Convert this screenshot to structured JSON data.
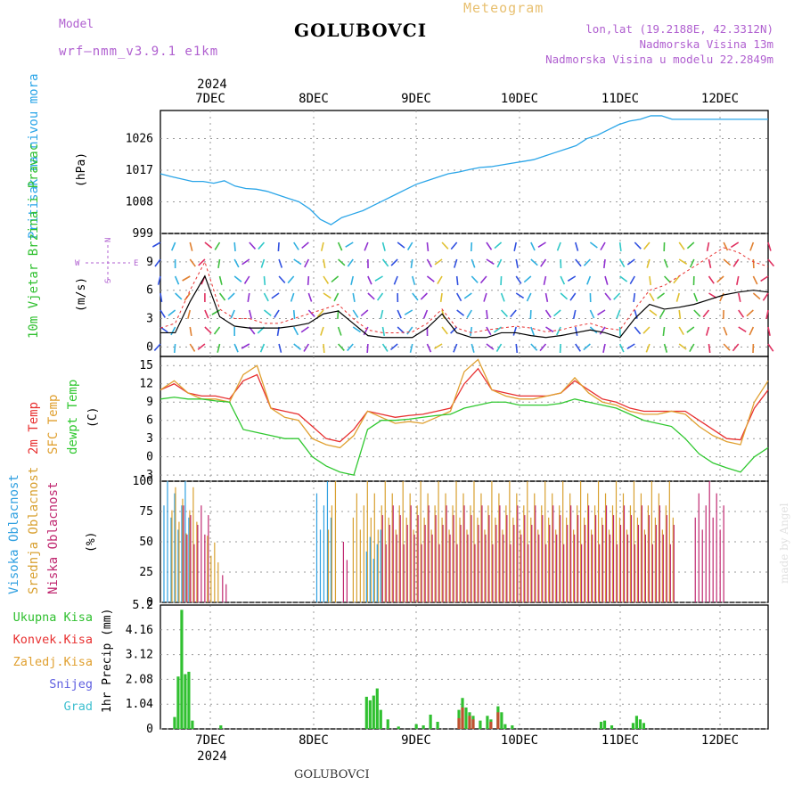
{
  "header": {
    "title": "GOLUBOVCI",
    "meteogram": "Meteogram",
    "model_label": "Model",
    "model_name": "wrf—nmm_v3.9.1  e1km",
    "lonlat": "lon,lat (19.2188E, 42.3312N)",
    "nadmorska": "Nadmorska Visina 13m",
    "nadmorska_model": "Nadmorska Visina u modelu 22.2849m",
    "bottom_label": "GOLUBOVCI",
    "credit": "made by Angel"
  },
  "colors": {
    "pressure": "#2aa5e8",
    "temp2m": "#e83030",
    "sfc": "#e0a030",
    "dewpt": "#30c830",
    "high_cloud": "#30a0e0",
    "mid_cloud": "#d8a030",
    "low_cloud": "#c02870",
    "total_precip": "#30c030",
    "conv_precip": "#c05030",
    "grad": "#40c0d0",
    "snow": "#6060e0",
    "wind_speed": "#000000",
    "gust": "#e83030"
  },
  "chart_data": [
    {
      "id": "pressure",
      "type": "line",
      "ylabel_left": "Pritisak na nivou mora",
      "units": "(hPa)",
      "ylim": [
        999,
        1034
      ],
      "yticks": [
        "1026",
        "1017",
        "1008",
        "999"
      ],
      "x_days": [
        "7DEC",
        "8DEC",
        "9DEC",
        "10DEC",
        "11DEC",
        "12DEC"
      ],
      "year": "2024",
      "x": [
        0,
        3,
        6,
        9,
        12,
        15,
        18,
        21,
        24,
        27,
        30,
        33,
        36,
        39,
        42,
        45,
        48,
        51,
        54,
        57,
        60,
        63,
        66,
        69,
        72,
        75,
        78,
        81,
        84,
        87,
        90,
        93,
        96,
        99,
        102,
        105,
        108,
        111,
        114,
        117,
        120,
        123,
        126,
        129,
        132,
        135,
        138,
        141,
        144,
        147,
        150,
        153,
        156,
        159,
        162,
        165,
        168,
        171
      ],
      "values": [
        1016,
        1015.2,
        1014.5,
        1013.8,
        1013.8,
        1013.3,
        1014,
        1012.5,
        1011.8,
        1011.6,
        1011,
        1010,
        1009,
        1008,
        1006,
        1003,
        1001.5,
        1003.5,
        1004.5,
        1005.5,
        1007,
        1008.5,
        1010,
        1011.5,
        1013,
        1014,
        1015,
        1016,
        1016.5,
        1017.2,
        1017.8,
        1018,
        1018.5,
        1019,
        1019.5,
        1020,
        1021,
        1022,
        1023,
        1024,
        1026,
        1027,
        1028.5,
        1030,
        1031,
        1031.5,
        1032.5,
        1032.5,
        1031.5,
        1031.5,
        1031.5,
        1031.5,
        1031.5,
        1031.5,
        1031.5,
        1031.5,
        1031.5,
        1031.5
      ]
    },
    {
      "id": "wind",
      "type": "line",
      "ylabel_left": "10m Vjetar Brzina i Pravac",
      "units": "(m/s)",
      "compass": {
        "n": "N",
        "s": "S",
        "w": "W",
        "e": "E"
      },
      "ylim": [
        -1,
        12
      ],
      "yticks": [
        "9",
        "6",
        "3",
        "0"
      ],
      "series": [
        {
          "values": [
            1.5,
            1.5,
            4.8,
            7.5,
            3.2,
            2.2,
            2.0,
            2.0,
            2.0,
            2.2,
            2.5,
            3.5,
            3.8,
            2.5,
            1.2,
            1.0,
            1.0,
            1.0,
            2.0,
            3.5,
            1.5,
            1.0,
            1.0,
            1.5,
            1.5,
            1.2,
            1.0,
            1.2,
            1.5,
            1.8,
            1.5,
            1.0,
            3.0,
            4.5,
            4.0,
            4.2,
            4.5,
            5.0,
            5.5,
            5.8,
            6.0,
            5.8
          ]
        },
        {
          "values": [
            2.0,
            2.5,
            6.0,
            9.0,
            4.0,
            3.0,
            3.0,
            2.5,
            2.5,
            3.0,
            3.5,
            4.0,
            4.5,
            3.0,
            1.8,
            1.5,
            1.5,
            1.6,
            2.5,
            4.0,
            2.0,
            1.5,
            1.8,
            2.0,
            2.2,
            2.0,
            1.6,
            1.8,
            2.2,
            2.5,
            2.0,
            1.8,
            4.0,
            6.0,
            6.5,
            7.5,
            8.5,
            9.5,
            10.5,
            10.0,
            9.0,
            8.5
          ]
        }
      ]
    },
    {
      "id": "temperature",
      "type": "line",
      "ylabel_left": "2m Temp",
      "ylabel_mid": "SFC Temp",
      "ylabel_right": "dewpt Temp",
      "units": "(C)",
      "ylim": [
        -4,
        16.5
      ],
      "yticks": [
        "15",
        "12",
        "9",
        "6",
        "3",
        "0",
        "-3"
      ],
      "series": [
        {
          "name": "2m Temp",
          "values": [
            11,
            12,
            10.5,
            10,
            10,
            9.5,
            12.5,
            13.5,
            8,
            7.5,
            7,
            5,
            3,
            2.5,
            4.5,
            7.5,
            7,
            6.5,
            6.8,
            7,
            7.5,
            8,
            12,
            14.5,
            11,
            10.5,
            10,
            10,
            10,
            10.5,
            12.5,
            11,
            9.5,
            9,
            8,
            7.5,
            7.5,
            7.5,
            7.5,
            6,
            4.5,
            3,
            2.8,
            8,
            11
          ]
        },
        {
          "name": "SFC Temp",
          "values": [
            11,
            12.5,
            10.5,
            9.5,
            9.5,
            9,
            13.5,
            15,
            8,
            6.5,
            6,
            3,
            2,
            1.5,
            3.5,
            7.5,
            6.5,
            5.5,
            5.8,
            5.5,
            6.5,
            7.5,
            14,
            16,
            11,
            10,
            9.5,
            9.5,
            10,
            10.5,
            13,
            10.5,
            9,
            8.5,
            7.5,
            7,
            7,
            7.5,
            7,
            5,
            3.5,
            2.5,
            2,
            9,
            12.5
          ]
        },
        {
          "name": "dewpt Temp",
          "values": [
            9.5,
            9.8,
            9.5,
            9.5,
            9.2,
            9.0,
            4.5,
            4.0,
            3.5,
            3,
            3,
            0,
            -1.5,
            -2.5,
            -3,
            4.5,
            6,
            6,
            6.2,
            6.5,
            6.8,
            7,
            8,
            8.5,
            9,
            9,
            8.5,
            8.5,
            8.5,
            8.8,
            9.5,
            9,
            8.5,
            8,
            7,
            6,
            5.5,
            5,
            3,
            0.5,
            -1,
            -1.8,
            -2.5,
            0,
            1.5
          ]
        }
      ]
    },
    {
      "id": "clouds",
      "type": "bar",
      "ylabel_left": "Visoka Oblacnost",
      "ylabel_mid": "Srednja Oblacnost",
      "ylabel_right": "Niska Oblacnost",
      "units": "(%)",
      "ylim": [
        0,
        100
      ],
      "yticks": [
        "100",
        "75",
        "50",
        "25",
        "0"
      ],
      "spans": [
        {
          "layer": "high",
          "from": 1,
          "to": 8,
          "value": 100
        },
        {
          "layer": "mid",
          "from": 3,
          "to": 10,
          "value": 95
        },
        {
          "layer": "low",
          "from": 6,
          "to": 13,
          "value": 80
        },
        {
          "layer": "mid",
          "from": 13,
          "to": 16,
          "value": 55
        },
        {
          "layer": "low",
          "from": 17,
          "to": 18,
          "value": 25
        },
        {
          "layer": "high",
          "from": 44,
          "to": 48,
          "value": 100
        },
        {
          "layer": "mid",
          "from": 47,
          "to": 49,
          "value": 100
        },
        {
          "layer": "low",
          "from": 51,
          "to": 52,
          "value": 50
        },
        {
          "layer": "mid",
          "from": 54,
          "to": 144,
          "value": 100
        },
        {
          "layer": "low",
          "from": 62,
          "to": 144,
          "value": 80
        },
        {
          "layer": "high",
          "from": 58,
          "to": 62,
          "value": 60
        },
        {
          "layer": "low",
          "from": 150,
          "to": 158,
          "value": 100
        }
      ]
    },
    {
      "id": "precip",
      "type": "bar",
      "labels": [
        "Ukupna Kisa",
        "Konvek.Kisa",
        "Zaledj.Kisa",
        "Snijeg",
        "Grad"
      ],
      "ylabel_right": "1hr Precip (mm)",
      "ylim": [
        0,
        5.2
      ],
      "yticks": [
        "5.2",
        "4.16",
        "3.12",
        "2.08",
        "1.04",
        "0"
      ],
      "bars": [
        [
          4,
          0.5
        ],
        [
          5,
          2.2
        ],
        [
          6,
          5.0
        ],
        [
          7,
          2.3
        ],
        [
          8,
          2.4
        ],
        [
          9,
          0.35
        ],
        [
          17,
          0.15
        ],
        [
          58,
          1.35
        ],
        [
          59,
          1.2
        ],
        [
          60,
          1.4
        ],
        [
          61,
          1.7
        ],
        [
          62,
          0.8
        ],
        [
          64,
          0.4
        ],
        [
          67,
          0.1
        ],
        [
          72,
          0.2
        ],
        [
          74,
          0.15
        ],
        [
          76,
          0.6
        ],
        [
          78,
          0.3
        ],
        [
          84,
          0.8
        ],
        [
          85,
          1.3
        ],
        [
          86,
          0.9
        ],
        [
          87,
          0.7
        ],
        [
          88,
          0.55
        ],
        [
          90,
          0.35
        ],
        [
          92,
          0.55
        ],
        [
          93,
          0.4
        ],
        [
          95,
          0.95
        ],
        [
          96,
          0.7
        ],
        [
          97,
          0.2
        ],
        [
          99,
          0.15
        ],
        [
          124,
          0.3
        ],
        [
          125,
          0.35
        ],
        [
          127,
          0.15
        ],
        [
          133,
          0.25
        ],
        [
          134,
          0.55
        ],
        [
          135,
          0.4
        ],
        [
          136,
          0.25
        ]
      ],
      "conv_bars": [
        [
          84,
          0.45
        ],
        [
          85,
          0.9
        ],
        [
          87,
          0.55
        ],
        [
          88,
          0.4
        ],
        [
          93,
          0.3
        ],
        [
          95,
          0.7
        ]
      ]
    }
  ]
}
